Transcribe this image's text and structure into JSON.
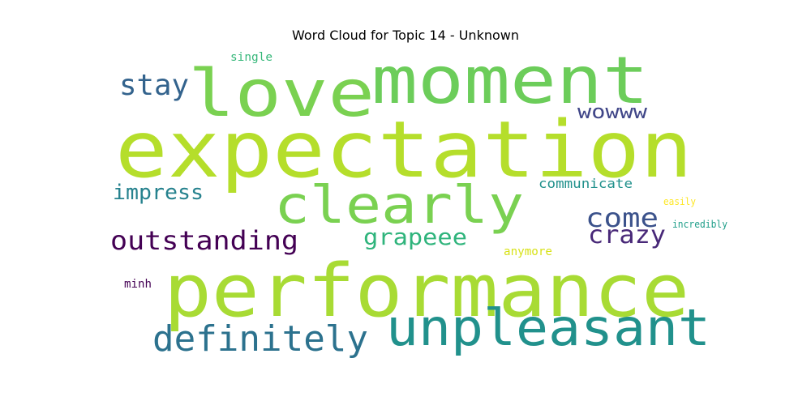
{
  "title": "Word Cloud for Topic 14 - Unknown",
  "words": [
    {
      "text": "expectation",
      "color": "#b5de2b"
    },
    {
      "text": "performance",
      "color": "#a8db34"
    },
    {
      "text": "moment",
      "color": "#6ccd5a"
    },
    {
      "text": "love",
      "color": "#7ad151"
    },
    {
      "text": "unpleasant",
      "color": "#21918c"
    },
    {
      "text": "clearly",
      "color": "#7ad151"
    },
    {
      "text": "definitely",
      "color": "#2c728e"
    },
    {
      "text": "outstanding",
      "color": "#440154"
    },
    {
      "text": "stay",
      "color": "#33638d"
    },
    {
      "text": "impress",
      "color": "#26828e"
    },
    {
      "text": "come",
      "color": "#3b528b"
    },
    {
      "text": "crazy",
      "color": "#482878"
    },
    {
      "text": "grapeee",
      "color": "#2fb47c"
    },
    {
      "text": "wowww",
      "color": "#404688"
    },
    {
      "text": "communicate",
      "color": "#21918c"
    },
    {
      "text": "single",
      "color": "#35b779"
    },
    {
      "text": "anymore",
      "color": "#d8e219"
    },
    {
      "text": "easily",
      "color": "#fde725"
    },
    {
      "text": "incredibly",
      "color": "#1f9e89"
    },
    {
      "text": "minh",
      "color": "#440154"
    }
  ]
}
